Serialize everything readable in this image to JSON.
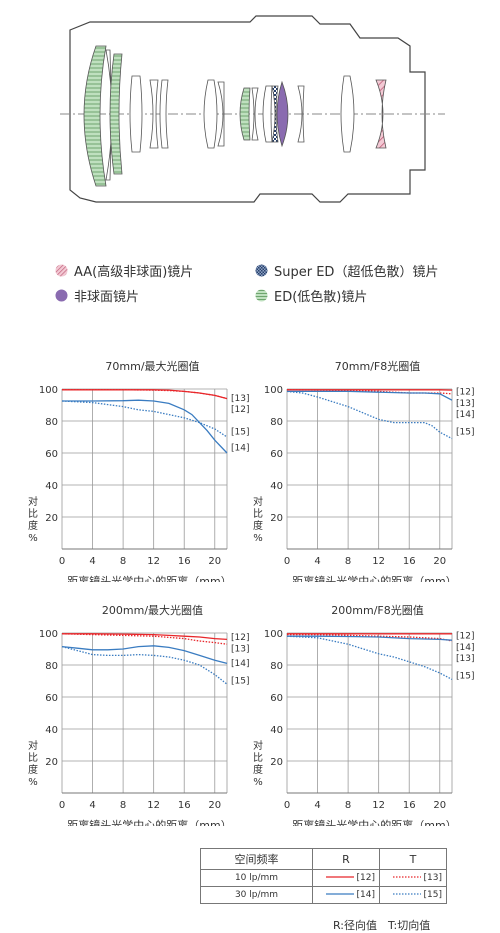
{
  "legend": [
    {
      "label": "AA(高级非球面)镜片",
      "icon": "hatched-circle-icon",
      "color": "#c0607a"
    },
    {
      "label": "Super ED（超低色散）镜片",
      "icon": "checkered-circle-icon",
      "color": "#27406b"
    },
    {
      "label": "非球面镜片",
      "icon": "filled-circle-icon",
      "color": "#8a6bb0"
    },
    {
      "label": "ED(低色散)镜片",
      "icon": "striped-circle-icon",
      "color": "#9dc99d"
    }
  ],
  "colors": {
    "r10": "#e8262a",
    "r30": "#3a7cc1"
  },
  "chart_data": [
    {
      "type": "line",
      "title": "70mm/最大光圈值",
      "xlabel": "距离镜头光学中心的距离（mm）",
      "ylabel": "对比度%",
      "xlim": [
        0,
        21.6
      ],
      "ylim": [
        0,
        100
      ],
      "xticks": [
        0,
        4,
        8,
        12,
        16,
        20
      ],
      "yticks": [
        20,
        40,
        60,
        80,
        100
      ],
      "grid": true,
      "series": [
        {
          "name": "[12]",
          "style": "r10",
          "x": [
            0,
            4,
            8,
            12,
            14,
            16,
            18,
            20,
            21.6
          ],
          "y": [
            99.5,
            99.5,
            99.5,
            99.5,
            99.3,
            98.5,
            97.5,
            96,
            94
          ]
        },
        {
          "name": "[13]",
          "style": "t10",
          "x": [
            0,
            4,
            8,
            12,
            14,
            16,
            18,
            20,
            21.6
          ],
          "y": [
            99.5,
            99.5,
            99.5,
            99.3,
            99,
            98.5,
            97.5,
            96,
            94
          ]
        },
        {
          "name": "[14]",
          "style": "r30",
          "x": [
            0,
            4,
            8,
            10,
            12,
            14,
            16,
            17,
            18,
            19,
            20,
            21.6
          ],
          "y": [
            92.5,
            92.5,
            92.7,
            93,
            92.5,
            91,
            87,
            84,
            79,
            74,
            68,
            60
          ]
        },
        {
          "name": "[15]",
          "style": "t30",
          "x": [
            0,
            4,
            8,
            10,
            12,
            14,
            16,
            18,
            20,
            21.6
          ],
          "y": [
            92.5,
            91.5,
            89,
            87,
            86,
            84,
            82,
            79,
            75,
            70
          ]
        }
      ],
      "labels": [
        {
          "text": "[13]",
          "y": 95
        },
        {
          "text": "[12]",
          "y": 88
        },
        {
          "text": "[15]",
          "y": 74
        },
        {
          "text": "[14]",
          "y": 64
        }
      ]
    },
    {
      "type": "line",
      "title": "70mm/F8光圈值",
      "xlabel": "距离镜头光学中心的距离（mm）",
      "ylabel": "对比度%",
      "xlim": [
        0,
        21.6
      ],
      "ylim": [
        0,
        100
      ],
      "xticks": [
        0,
        4,
        8,
        12,
        16,
        20
      ],
      "yticks": [
        20,
        40,
        60,
        80,
        100
      ],
      "grid": true,
      "series": [
        {
          "name": "[12]",
          "style": "r10",
          "x": [
            0,
            4,
            8,
            12,
            16,
            20,
            21.6
          ],
          "y": [
            99.5,
            99.5,
            99.5,
            99.5,
            99.5,
            99.5,
            99.3
          ]
        },
        {
          "name": "[13]",
          "style": "t10",
          "x": [
            0,
            4,
            8,
            12,
            14,
            16,
            20,
            21.6
          ],
          "y": [
            99.5,
            99.3,
            99,
            98.5,
            98,
            97.5,
            97.5,
            97
          ]
        },
        {
          "name": "[14]",
          "style": "r30",
          "x": [
            0,
            4,
            8,
            12,
            16,
            18,
            20,
            21.6
          ],
          "y": [
            98.5,
            98.5,
            98.5,
            98,
            97.5,
            97.5,
            97,
            93
          ]
        },
        {
          "name": "[15]",
          "style": "t30",
          "x": [
            0,
            2,
            4,
            6,
            8,
            10,
            12,
            14,
            16,
            18,
            19,
            20,
            21.6
          ],
          "y": [
            98.5,
            97.5,
            95,
            92,
            89,
            85,
            81,
            79,
            79,
            79,
            77,
            73,
            69
          ]
        }
      ],
      "labels": [
        {
          "text": "[12]",
          "y": 99
        },
        {
          "text": "[13]",
          "y": 92
        },
        {
          "text": "[14]",
          "y": 85
        },
        {
          "text": "[15]",
          "y": 74
        }
      ]
    },
    {
      "type": "line",
      "title": "200mm/最大光圈值",
      "xlabel": "距离镜头光学中心的距离（mm）",
      "ylabel": "对比度%",
      "xlim": [
        0,
        21.6
      ],
      "ylim": [
        0,
        100
      ],
      "xticks": [
        0,
        4,
        8,
        12,
        16,
        20
      ],
      "yticks": [
        20,
        40,
        60,
        80,
        100
      ],
      "grid": true,
      "series": [
        {
          "name": "[12]",
          "style": "r10",
          "x": [
            0,
            4,
            8,
            12,
            14,
            16,
            18,
            20,
            21.6
          ],
          "y": [
            99.5,
            99.5,
            99.3,
            99,
            98.5,
            98,
            97.5,
            96.5,
            96
          ]
        },
        {
          "name": "[13]",
          "style": "t10",
          "x": [
            0,
            4,
            8,
            12,
            16,
            18,
            20,
            21.6
          ],
          "y": [
            99.5,
            99,
            98.5,
            98,
            96.5,
            95,
            94,
            93
          ]
        },
        {
          "name": "[14]",
          "style": "r30",
          "x": [
            0,
            2,
            4,
            6,
            8,
            10,
            12,
            14,
            16,
            18,
            20,
            21.6
          ],
          "y": [
            91.5,
            90.5,
            89.5,
            89.5,
            90,
            91.5,
            92,
            91,
            89,
            86,
            83,
            81
          ]
        },
        {
          "name": "[15]",
          "style": "t30",
          "x": [
            0,
            2,
            4,
            6,
            8,
            10,
            12,
            14,
            16,
            18,
            20,
            21.6
          ],
          "y": [
            91.5,
            89,
            86.5,
            86,
            86,
            86.5,
            86,
            85,
            83,
            80,
            74,
            68
          ]
        }
      ],
      "labels": [
        {
          "text": "[12]",
          "y": 98
        },
        {
          "text": "[13]",
          "y": 91
        },
        {
          "text": "[14]",
          "y": 82
        },
        {
          "text": "[15]",
          "y": 71
        }
      ]
    },
    {
      "type": "line",
      "title": "200mm/F8光圈值",
      "xlabel": "距离镜头光学中心的距离（mm）",
      "ylabel": "对比度%",
      "xlim": [
        0,
        21.6
      ],
      "ylim": [
        0,
        100
      ],
      "xticks": [
        0,
        4,
        8,
        12,
        16,
        20
      ],
      "yticks": [
        20,
        40,
        60,
        80,
        100
      ],
      "grid": true,
      "series": [
        {
          "name": "[12]",
          "style": "r10",
          "x": [
            0,
            4,
            8,
            12,
            16,
            20,
            21.6
          ],
          "y": [
            99.5,
            99.5,
            99.5,
            99.5,
            99.5,
            99.5,
            99.5
          ]
        },
        {
          "name": "[13]",
          "style": "t10",
          "x": [
            0,
            4,
            8,
            12,
            16,
            20,
            21.6
          ],
          "y": [
            99,
            99,
            98.5,
            98,
            97.5,
            96.5,
            95
          ]
        },
        {
          "name": "[14]",
          "style": "r30",
          "x": [
            0,
            4,
            8,
            12,
            16,
            20,
            21.6
          ],
          "y": [
            98,
            98,
            97.8,
            97.5,
            96.5,
            96,
            95.5
          ]
        },
        {
          "name": "[15]",
          "style": "t30",
          "x": [
            0,
            2,
            4,
            6,
            8,
            10,
            12,
            14,
            16,
            18,
            20,
            21.6
          ],
          "y": [
            98,
            97.5,
            97,
            95,
            93,
            90,
            87,
            85,
            82,
            79,
            75,
            71
          ]
        }
      ],
      "labels": [
        {
          "text": "[12]",
          "y": 99
        },
        {
          "text": "[14]",
          "y": 92
        },
        {
          "text": "[13]",
          "y": 85
        },
        {
          "text": "[15]",
          "y": 74
        }
      ]
    }
  ],
  "table": {
    "header": [
      "空间频率",
      "R",
      "T"
    ],
    "rows": [
      {
        "freq": "10 lp/mm",
        "r_label": "[12]",
        "t_label": "[13]"
      },
      {
        "freq": "30 lp/mm",
        "r_label": "[14]",
        "t_label": "[15]"
      }
    ]
  },
  "note": "R:径向值　T:切向值"
}
